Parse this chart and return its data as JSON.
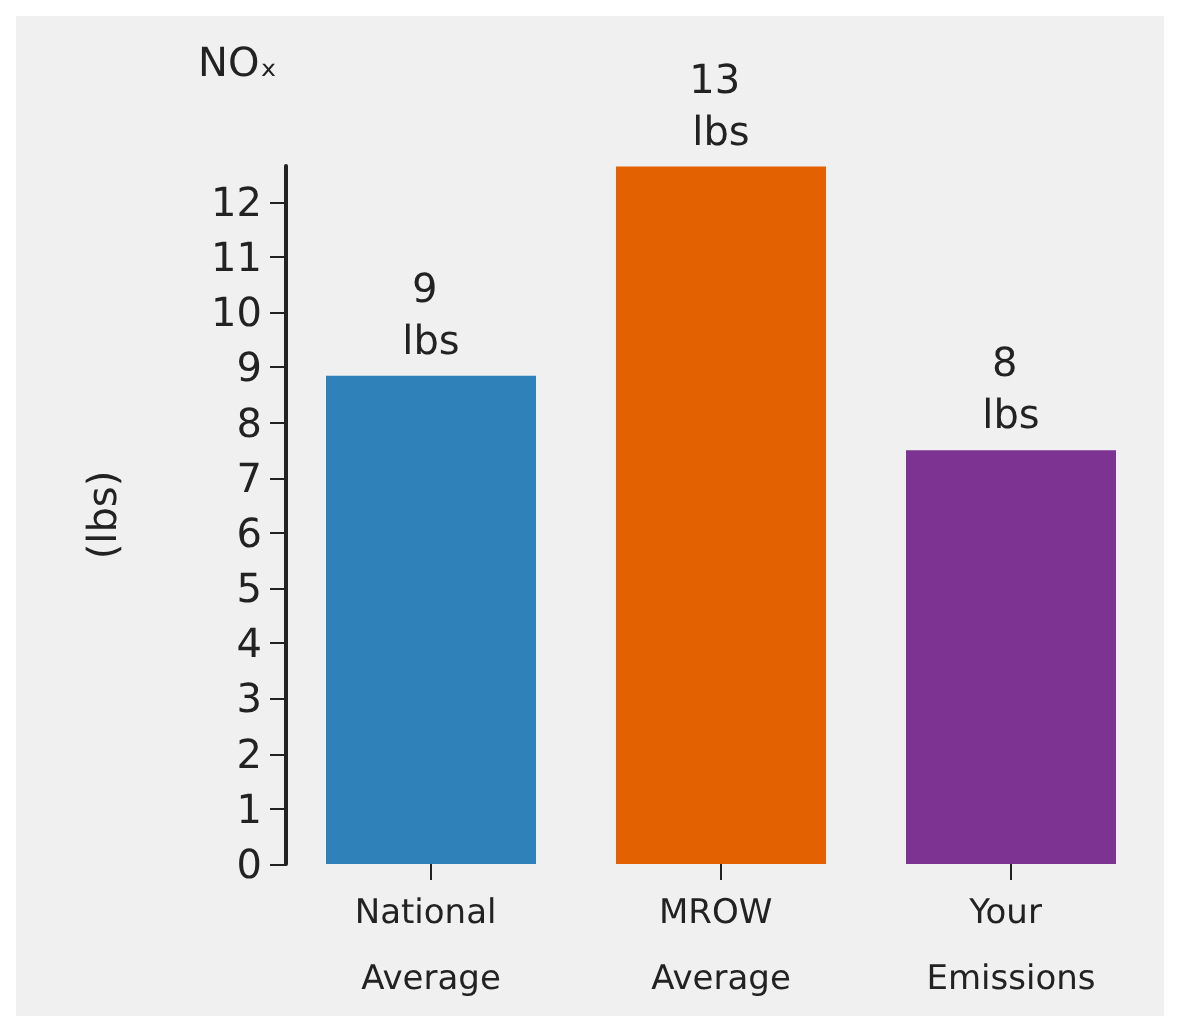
{
  "chart_data": {
    "type": "bar",
    "title": "NOₓ",
    "ylabel": "(lbs)",
    "categories": [
      "National Average",
      "MROW Average",
      "Your Emissions"
    ],
    "values": [
      8.85,
      12.64,
      7.5
    ],
    "colors": [
      "#2e81b9",
      "#e46100",
      "#7c3391"
    ],
    "value_labels": [
      "9 lbs",
      "13 lbs",
      "8 lbs"
    ],
    "ylim": [
      0,
      12.65
    ],
    "yticks": [
      0,
      1,
      2,
      3,
      4,
      5,
      6,
      7,
      8,
      9,
      10,
      11,
      12
    ],
    "grid": false
  }
}
